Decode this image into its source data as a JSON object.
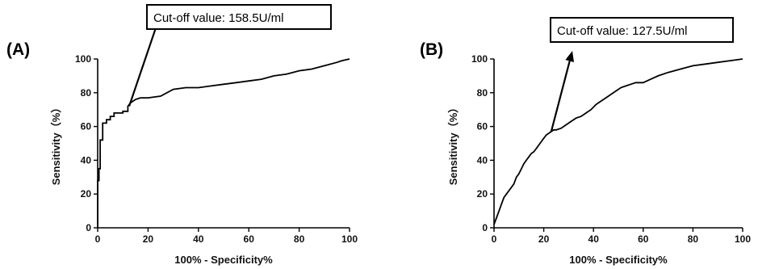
{
  "chart_data": [
    {
      "type": "line",
      "panel_label": "(A)",
      "xlabel": "100% - Specificity%",
      "ylabel": "Sensitivity（%）",
      "xlim": [
        0,
        100
      ],
      "ylim": [
        0,
        100
      ],
      "x_ticks": [
        0,
        20,
        40,
        60,
        80,
        100
      ],
      "y_ticks": [
        0,
        20,
        40,
        60,
        80,
        100
      ],
      "grid": false,
      "annotation": {
        "text": "Cut-off value: 158.5U/ml",
        "point": [
          12.5,
          72
        ]
      },
      "series": [
        {
          "x": [
            0,
            0,
            0.5,
            0.5,
            1,
            1,
            2,
            2,
            3.5,
            3.5,
            5,
            5,
            6.5,
            6.5,
            8,
            8,
            10,
            10,
            12,
            12,
            13,
            15,
            17,
            20,
            25,
            30,
            35,
            40,
            45,
            50,
            55,
            60,
            65,
            70,
            75,
            80,
            85,
            90,
            95,
            97,
            100
          ],
          "y": [
            0,
            28,
            28,
            35,
            35,
            52,
            52,
            62,
            62,
            64,
            64,
            66,
            66,
            68,
            68,
            68,
            68,
            69,
            69,
            72,
            74,
            76,
            77,
            77,
            78,
            82,
            83,
            83,
            84,
            85,
            86,
            87,
            88,
            90,
            91,
            93,
            94,
            96,
            98,
            99,
            100
          ]
        }
      ]
    },
    {
      "type": "line",
      "panel_label": "(B)",
      "xlabel": "100% - Specificity%",
      "ylabel": "Sensitivity（%）",
      "xlim": [
        0,
        100
      ],
      "ylim": [
        0,
        100
      ],
      "x_ticks": [
        0,
        20,
        40,
        60,
        80,
        100
      ],
      "y_ticks": [
        0,
        20,
        40,
        60,
        80,
        100
      ],
      "grid": false,
      "annotation": {
        "text": "Cut-off value: 127.5U/ml",
        "point": [
          23,
          57
        ]
      },
      "series": [
        {
          "x": [
            0,
            1,
            2,
            3,
            4,
            5,
            6,
            7,
            8,
            9,
            10,
            11,
            12,
            13,
            14,
            15,
            16,
            17,
            18,
            19,
            20,
            21,
            22,
            23,
            24,
            25,
            27,
            29,
            31,
            33,
            35,
            37,
            39,
            41,
            43,
            45,
            47,
            49,
            51,
            53,
            55,
            57,
            60,
            63,
            66,
            70,
            75,
            80,
            85,
            90,
            95,
            100
          ],
          "y": [
            2,
            6,
            10,
            14,
            18,
            20,
            22,
            24,
            26,
            30,
            32,
            35,
            38,
            40,
            42,
            44,
            45,
            47,
            49,
            51,
            53,
            55,
            56,
            57,
            58,
            58,
            59,
            61,
            63,
            65,
            66,
            68,
            70,
            73,
            75,
            77,
            79,
            81,
            83,
            84,
            85,
            86,
            86,
            88,
            90,
            92,
            94,
            96,
            97,
            98,
            99,
            100
          ]
        }
      ]
    }
  ]
}
